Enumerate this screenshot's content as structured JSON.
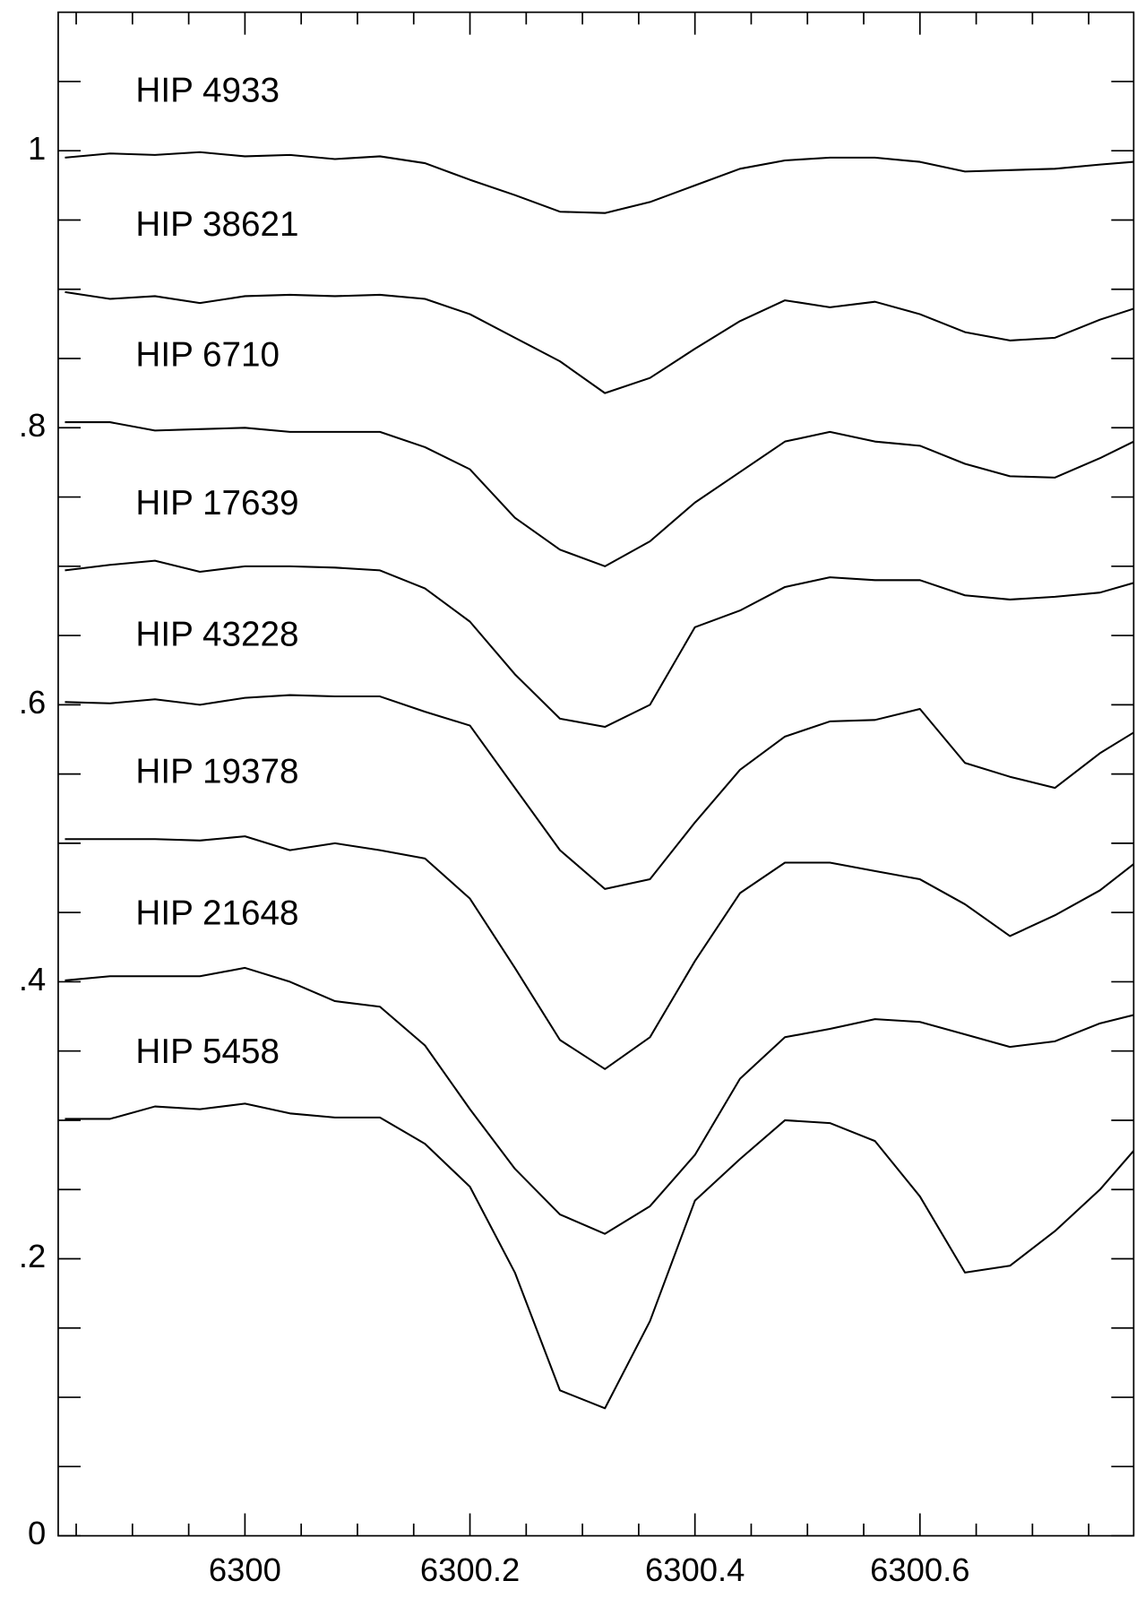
{
  "chart_data": {
    "type": "line",
    "x": [
      6299.84,
      6299.88,
      6299.92,
      6299.96,
      6300.0,
      6300.04,
      6300.08,
      6300.12,
      6300.16,
      6300.2,
      6300.24,
      6300.28,
      6300.32,
      6300.36,
      6300.4,
      6300.44,
      6300.48,
      6300.52,
      6300.56,
      6300.6,
      6300.64,
      6300.68,
      6300.72,
      6300.76,
      6300.79
    ],
    "series": [
      {
        "name": "HIP 4933",
        "color": "#000000",
        "values": [
          0.995,
          0.998,
          0.997,
          0.999,
          0.996,
          0.997,
          0.994,
          0.996,
          0.991,
          0.979,
          0.968,
          0.956,
          0.955,
          0.963,
          0.975,
          0.987,
          0.993,
          0.995,
          0.995,
          0.992,
          0.985,
          0.986,
          0.987,
          0.99,
          0.992
        ]
      },
      {
        "name": "HIP 38621",
        "color": "#000000",
        "values": [
          0.898,
          0.893,
          0.895,
          0.89,
          0.895,
          0.896,
          0.895,
          0.896,
          0.893,
          0.882,
          0.865,
          0.848,
          0.825,
          0.836,
          0.857,
          0.877,
          0.892,
          0.887,
          0.891,
          0.882,
          0.869,
          0.863,
          0.865,
          0.878,
          0.886
        ]
      },
      {
        "name": "HIP 6710",
        "color": "#000000",
        "values": [
          0.804,
          0.804,
          0.798,
          0.799,
          0.8,
          0.797,
          0.797,
          0.797,
          0.786,
          0.77,
          0.735,
          0.712,
          0.7,
          0.718,
          0.746,
          0.768,
          0.79,
          0.797,
          0.79,
          0.787,
          0.774,
          0.765,
          0.764,
          0.778,
          0.79
        ]
      },
      {
        "name": "HIP 17639",
        "color": "#000000",
        "values": [
          0.697,
          0.701,
          0.704,
          0.696,
          0.7,
          0.7,
          0.699,
          0.697,
          0.684,
          0.66,
          0.622,
          0.59,
          0.584,
          0.6,
          0.656,
          0.668,
          0.685,
          0.692,
          0.69,
          0.69,
          0.679,
          0.676,
          0.678,
          0.681,
          0.688
        ]
      },
      {
        "name": "HIP 43228",
        "color": "#000000",
        "values": [
          0.602,
          0.601,
          0.604,
          0.6,
          0.605,
          0.607,
          0.606,
          0.606,
          0.595,
          0.585,
          0.54,
          0.495,
          0.467,
          0.474,
          0.515,
          0.553,
          0.577,
          0.588,
          0.589,
          0.597,
          0.558,
          0.548,
          0.54,
          0.565,
          0.58
        ]
      },
      {
        "name": "HIP 19378",
        "color": "#000000",
        "values": [
          0.503,
          0.503,
          0.503,
          0.502,
          0.505,
          0.495,
          0.5,
          0.495,
          0.489,
          0.46,
          0.41,
          0.358,
          0.337,
          0.36,
          0.415,
          0.464,
          0.486,
          0.486,
          0.48,
          0.474,
          0.456,
          0.433,
          0.448,
          0.466,
          0.485
        ]
      },
      {
        "name": "HIP 21648",
        "color": "#000000",
        "values": [
          0.401,
          0.404,
          0.404,
          0.404,
          0.41,
          0.4,
          0.386,
          0.382,
          0.354,
          0.308,
          0.265,
          0.232,
          0.218,
          0.238,
          0.275,
          0.33,
          0.36,
          0.366,
          0.373,
          0.371,
          0.362,
          0.353,
          0.357,
          0.37,
          0.376
        ]
      },
      {
        "name": "HIP 5458",
        "color": "#000000",
        "values": [
          0.301,
          0.301,
          0.31,
          0.308,
          0.312,
          0.305,
          0.302,
          0.302,
          0.283,
          0.252,
          0.19,
          0.105,
          0.092,
          0.155,
          0.242,
          0.272,
          0.3,
          0.298,
          0.285,
          0.245,
          0.19,
          0.195,
          0.22,
          0.25,
          0.278
        ]
      }
    ],
    "xlim": [
      6299.834,
      6300.79
    ],
    "xticks": [
      6300,
      6300.2,
      6300.4,
      6300.6
    ],
    "xticks_minor": [
      6299.85,
      6299.9,
      6299.95,
      6300.05,
      6300.1,
      6300.15,
      6300.25,
      6300.3,
      6300.35,
      6300.45,
      6300.5,
      6300.55,
      6300.65,
      6300.7,
      6300.75
    ],
    "ylim": [
      0,
      1.1
    ],
    "yticks": [
      0,
      {
        "value": 0.2,
        "label": ".2"
      },
      {
        "value": 0.4,
        "label": ".4"
      },
      {
        "value": 0.6,
        "label": ".6"
      },
      {
        "value": 0.8,
        "label": ".8"
      },
      1
    ],
    "yticks_minor": [
      0.05,
      0.1,
      0.15,
      0.25,
      0.3,
      0.35,
      0.45,
      0.5,
      0.55,
      0.65,
      0.7,
      0.75,
      0.85,
      0.9,
      0.95,
      1.05
    ]
  }
}
